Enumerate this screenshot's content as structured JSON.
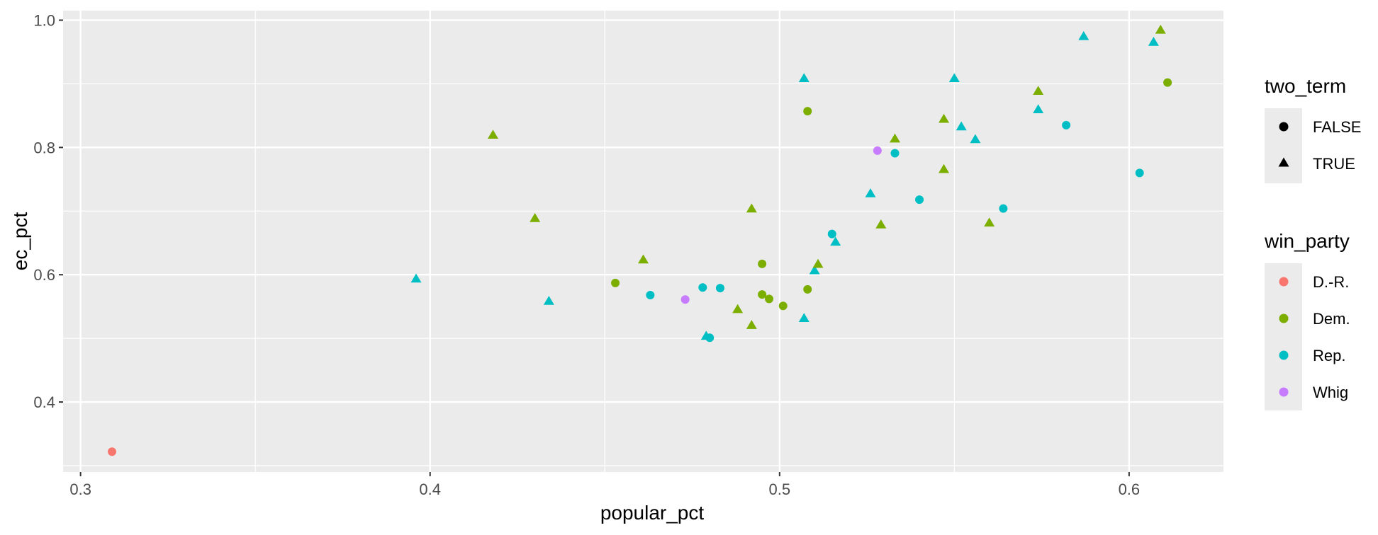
{
  "chart_data": {
    "type": "scatter",
    "xlabel": "popular_pct",
    "ylabel": "ec_pct",
    "xlim": [
      0.295,
      0.627
    ],
    "ylim": [
      0.29,
      1.015
    ],
    "x_ticks": [
      0.3,
      0.4,
      0.5,
      0.6
    ],
    "x_tick_labels": [
      "0.3",
      "0.4",
      "0.5",
      "0.6"
    ],
    "y_ticks": [
      0.4,
      0.6,
      0.8,
      1.0
    ],
    "y_tick_labels": [
      "0.4",
      "0.6",
      "0.8",
      "1.0"
    ],
    "grid": true,
    "legend_placement": "right",
    "legends": {
      "shape": {
        "title": "two_term",
        "entries": [
          {
            "label": "FALSE",
            "shape": "circle"
          },
          {
            "label": "TRUE",
            "shape": "triangle"
          }
        ]
      },
      "color": {
        "title": "win_party",
        "entries": [
          {
            "label": "D.-R.",
            "color": "#F8766D"
          },
          {
            "label": "Dem.",
            "color": "#7CAE00"
          },
          {
            "label": "Rep.",
            "color": "#00BFC4"
          },
          {
            "label": "Whig",
            "color": "#C77CFF"
          }
        ]
      }
    },
    "points": [
      {
        "x": 0.309,
        "y": 0.322,
        "party": "D.-R.",
        "two_term": "FALSE"
      },
      {
        "x": 0.396,
        "y": 0.594,
        "party": "Rep.",
        "two_term": "TRUE"
      },
      {
        "x": 0.418,
        "y": 0.82,
        "party": "Dem.",
        "two_term": "TRUE"
      },
      {
        "x": 0.43,
        "y": 0.689,
        "party": "Dem.",
        "two_term": "TRUE"
      },
      {
        "x": 0.434,
        "y": 0.559,
        "party": "Rep.",
        "two_term": "TRUE"
      },
      {
        "x": 0.453,
        "y": 0.587,
        "party": "Dem.",
        "two_term": "FALSE"
      },
      {
        "x": 0.461,
        "y": 0.624,
        "party": "Dem.",
        "two_term": "TRUE"
      },
      {
        "x": 0.463,
        "y": 0.568,
        "party": "Rep.",
        "two_term": "FALSE"
      },
      {
        "x": 0.473,
        "y": 0.561,
        "party": "Whig",
        "two_term": "FALSE"
      },
      {
        "x": 0.478,
        "y": 0.58,
        "party": "Rep.",
        "two_term": "FALSE"
      },
      {
        "x": 0.479,
        "y": 0.504,
        "party": "Rep.",
        "two_term": "TRUE"
      },
      {
        "x": 0.48,
        "y": 0.501,
        "party": "Rep.",
        "two_term": "FALSE"
      },
      {
        "x": 0.483,
        "y": 0.579,
        "party": "Rep.",
        "two_term": "FALSE"
      },
      {
        "x": 0.488,
        "y": 0.546,
        "party": "Dem.",
        "two_term": "TRUE"
      },
      {
        "x": 0.492,
        "y": 0.704,
        "party": "Dem.",
        "two_term": "TRUE"
      },
      {
        "x": 0.492,
        "y": 0.521,
        "party": "Dem.",
        "two_term": "TRUE"
      },
      {
        "x": 0.495,
        "y": 0.617,
        "party": "Dem.",
        "two_term": "FALSE"
      },
      {
        "x": 0.495,
        "y": 0.569,
        "party": "Dem.",
        "two_term": "FALSE"
      },
      {
        "x": 0.497,
        "y": 0.562,
        "party": "Dem.",
        "two_term": "FALSE"
      },
      {
        "x": 0.501,
        "y": 0.551,
        "party": "Dem.",
        "two_term": "FALSE"
      },
      {
        "x": 0.507,
        "y": 0.909,
        "party": "Rep.",
        "two_term": "TRUE"
      },
      {
        "x": 0.507,
        "y": 0.532,
        "party": "Rep.",
        "two_term": "TRUE"
      },
      {
        "x": 0.508,
        "y": 0.857,
        "party": "Dem.",
        "two_term": "FALSE"
      },
      {
        "x": 0.508,
        "y": 0.577,
        "party": "Dem.",
        "two_term": "FALSE"
      },
      {
        "x": 0.51,
        "y": 0.607,
        "party": "Rep.",
        "two_term": "TRUE"
      },
      {
        "x": 0.511,
        "y": 0.617,
        "party": "Dem.",
        "two_term": "TRUE"
      },
      {
        "x": 0.515,
        "y": 0.664,
        "party": "Rep.",
        "two_term": "FALSE"
      },
      {
        "x": 0.516,
        "y": 0.652,
        "party": "Rep.",
        "two_term": "TRUE"
      },
      {
        "x": 0.526,
        "y": 0.728,
        "party": "Rep.",
        "two_term": "TRUE"
      },
      {
        "x": 0.528,
        "y": 0.795,
        "party": "Whig",
        "two_term": "FALSE"
      },
      {
        "x": 0.529,
        "y": 0.679,
        "party": "Dem.",
        "two_term": "TRUE"
      },
      {
        "x": 0.533,
        "y": 0.814,
        "party": "Dem.",
        "two_term": "TRUE"
      },
      {
        "x": 0.533,
        "y": 0.791,
        "party": "Rep.",
        "two_term": "FALSE"
      },
      {
        "x": 0.54,
        "y": 0.718,
        "party": "Rep.",
        "two_term": "FALSE"
      },
      {
        "x": 0.547,
        "y": 0.845,
        "party": "Dem.",
        "two_term": "TRUE"
      },
      {
        "x": 0.547,
        "y": 0.766,
        "party": "Dem.",
        "two_term": "TRUE"
      },
      {
        "x": 0.55,
        "y": 0.909,
        "party": "Rep.",
        "two_term": "TRUE"
      },
      {
        "x": 0.552,
        "y": 0.833,
        "party": "Rep.",
        "two_term": "TRUE"
      },
      {
        "x": 0.556,
        "y": 0.813,
        "party": "Rep.",
        "two_term": "TRUE"
      },
      {
        "x": 0.56,
        "y": 0.682,
        "party": "Dem.",
        "two_term": "TRUE"
      },
      {
        "x": 0.564,
        "y": 0.704,
        "party": "Rep.",
        "two_term": "FALSE"
      },
      {
        "x": 0.574,
        "y": 0.889,
        "party": "Dem.",
        "two_term": "TRUE"
      },
      {
        "x": 0.574,
        "y": 0.86,
        "party": "Rep.",
        "two_term": "TRUE"
      },
      {
        "x": 0.582,
        "y": 0.835,
        "party": "Rep.",
        "two_term": "FALSE"
      },
      {
        "x": 0.587,
        "y": 0.975,
        "party": "Rep.",
        "two_term": "TRUE"
      },
      {
        "x": 0.603,
        "y": 0.76,
        "party": "Rep.",
        "two_term": "FALSE"
      },
      {
        "x": 0.607,
        "y": 0.966,
        "party": "Rep.",
        "two_term": "TRUE"
      },
      {
        "x": 0.609,
        "y": 0.985,
        "party": "Dem.",
        "two_term": "TRUE"
      },
      {
        "x": 0.611,
        "y": 0.902,
        "party": "Dem.",
        "two_term": "FALSE"
      }
    ]
  }
}
